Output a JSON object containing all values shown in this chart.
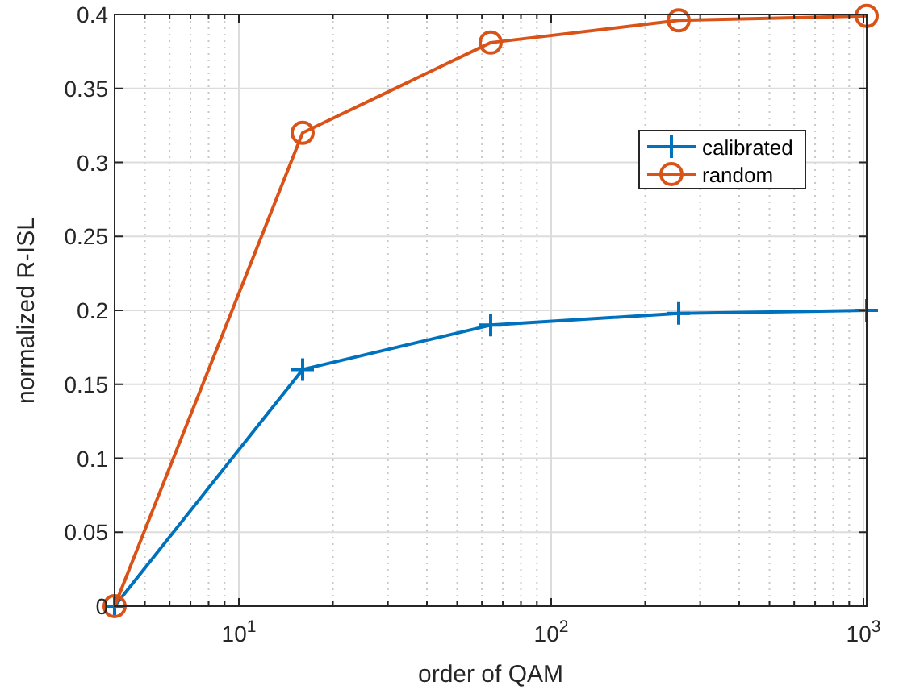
{
  "chart_data": {
    "type": "line",
    "xlabel": "order of QAM",
    "ylabel": "normalized R-ISL",
    "log": "x",
    "grid": true,
    "legend": "top right",
    "line_style": "solid",
    "x": [
      4,
      16,
      64,
      256,
      1024
    ],
    "xlim": [
      4,
      1024
    ],
    "xticks": [
      {
        "value": 5,
        "label": null
      },
      {
        "value": 6,
        "label": null
      },
      {
        "value": 7,
        "label": null
      },
      {
        "value": 8,
        "label": null
      },
      {
        "value": 9,
        "label": null
      },
      {
        "value": 10,
        "label": "10$^{1}$"
      },
      {
        "value": 20,
        "label": null
      },
      {
        "value": 30,
        "label": null
      },
      {
        "value": 40,
        "label": null
      },
      {
        "value": 50,
        "label": null
      },
      {
        "value": 60,
        "label": null
      },
      {
        "value": 70,
        "label": null
      },
      {
        "value": 80,
        "label": null
      },
      {
        "value": 90,
        "label": null
      },
      {
        "value": 100,
        "label": "10$^{2}$"
      },
      {
        "value": 200,
        "label": null
      },
      {
        "value": 300,
        "label": null
      },
      {
        "value": 400,
        "label": null
      },
      {
        "value": 500,
        "label": null
      },
      {
        "value": 600,
        "label": null
      },
      {
        "value": 700,
        "label": null
      },
      {
        "value": 800,
        "label": null
      },
      {
        "value": 900,
        "label": null
      },
      {
        "value": 1000,
        "label": "10$^{3}$"
      }
    ],
    "ylim": [
      0,
      0.4
    ],
    "yticks": [
      0,
      0.05,
      0.1,
      0.15,
      0.2,
      0.25,
      0.3,
      0.35,
      0.4
    ],
    "series": [
      {
        "name": "calibrated",
        "color": "#0072bd",
        "marker": "cross",
        "values": [
          0,
          0.16,
          0.19,
          0.198,
          0.2
        ]
      },
      {
        "name": "random",
        "color": "#d95319",
        "marker": "circle",
        "values": [
          0,
          0.32,
          0.381,
          0.396,
          0.399
        ]
      }
    ]
  }
}
